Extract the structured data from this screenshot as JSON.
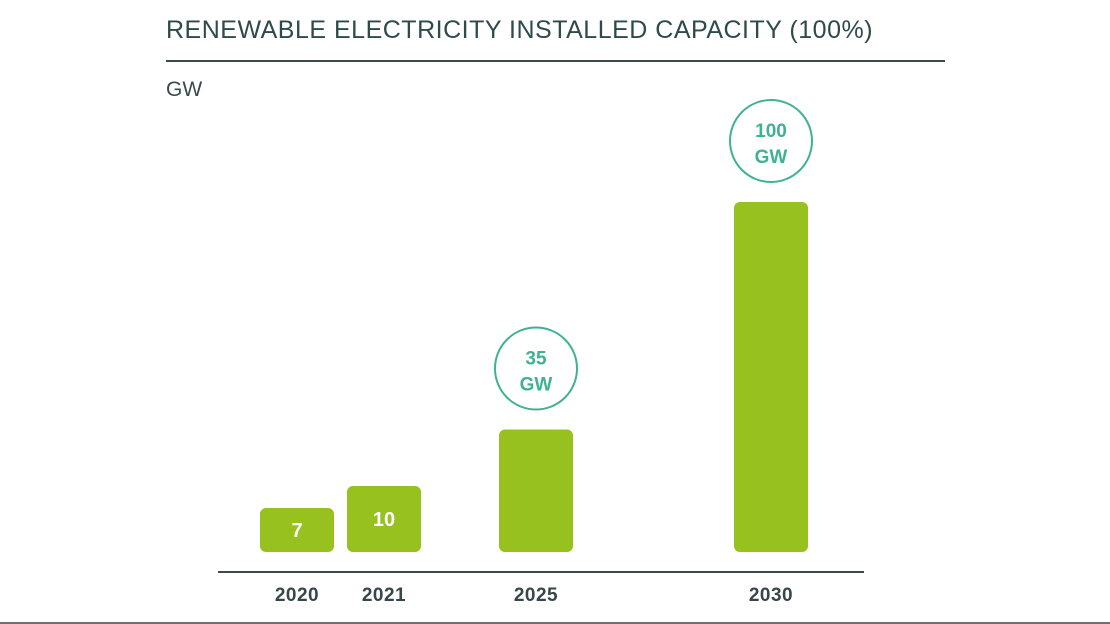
{
  "colors": {
    "bar": "#97c11f",
    "callout": "#3fb293",
    "text_dark": "#36474a",
    "axis": "#3b4b4b"
  },
  "chart_data": {
    "type": "bar",
    "title": "RENEWABLE ELECTRICITY INSTALLED CAPACITY (100%)",
    "ylabel": "GW",
    "xlabel": "",
    "categories": [
      "2020",
      "2021",
      "2025",
      "2030"
    ],
    "values": [
      7,
      10,
      35,
      100
    ],
    "value_labels": [
      "7",
      "10",
      "",
      ""
    ],
    "callouts": [
      {
        "category": "2025",
        "line1": "35",
        "line2": "GW"
      },
      {
        "category": "2030",
        "line1": "100",
        "line2": "GW"
      }
    ],
    "ylim": [
      0,
      100
    ],
    "grid": false,
    "legend": "none"
  }
}
